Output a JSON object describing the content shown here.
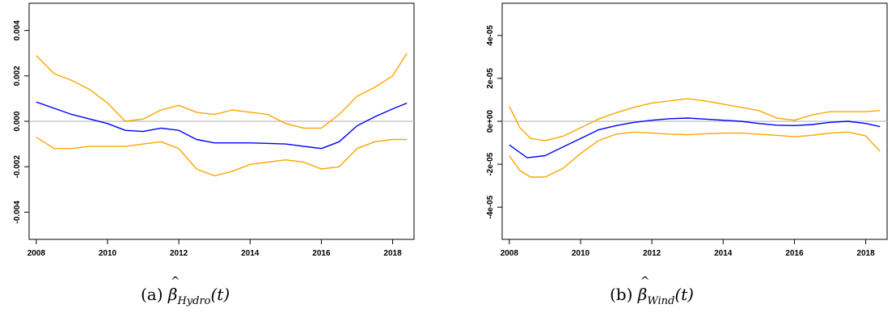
{
  "chart_data": [
    {
      "type": "line",
      "panel": "a",
      "title": "",
      "xlabel": "",
      "ylabel": "",
      "xlim": [
        2007.8,
        2018.6
      ],
      "ylim": [
        -0.0052,
        0.0052
      ],
      "xticks": [
        2008,
        2010,
        2012,
        2014,
        2016,
        2018
      ],
      "xtick_labels": [
        "2008",
        "2010",
        "2012",
        "2014",
        "2016",
        "2018"
      ],
      "yticks": [
        -0.004,
        -0.002,
        0.0,
        0.002,
        0.004
      ],
      "ytick_labels": [
        "-0.004",
        "-0.002",
        "0.000",
        "0.002",
        "0.004"
      ],
      "reference_line": 0,
      "colors": {
        "estimate": "#0000ff",
        "band": "#ffa500",
        "reference": "#bebebe"
      },
      "series": [
        {
          "role": "estimate",
          "x": [
            2008,
            2009,
            2010,
            2010.5,
            2011,
            2011.5,
            2012,
            2012.5,
            2013,
            2014,
            2015,
            2015.5,
            2016,
            2016.5,
            2017,
            2017.5,
            2018,
            2018.4
          ],
          "y": [
            0.00085,
            0.0003,
            -0.0001,
            -0.0004,
            -0.00045,
            -0.0003,
            -0.0004,
            -0.0008,
            -0.00095,
            -0.00095,
            -0.001,
            -0.0011,
            -0.0012,
            -0.0009,
            -0.0002,
            0.0002,
            0.00055,
            0.0008
          ]
        },
        {
          "role": "upper",
          "x": [
            2008,
            2008.5,
            2009,
            2009.5,
            2010,
            2010.5,
            2011,
            2011.5,
            2012,
            2012.5,
            2013,
            2013.5,
            2014,
            2014.5,
            2015,
            2015.5,
            2016,
            2016.5,
            2017,
            2017.5,
            2018,
            2018.4
          ],
          "y": [
            0.0029,
            0.0021,
            0.0018,
            0.0014,
            0.0008,
            0.0,
            0.0001,
            0.0005,
            0.0007,
            0.0004,
            0.0003,
            0.0005,
            0.0004,
            0.0003,
            -0.0001,
            -0.0003,
            -0.0003,
            0.0003,
            0.0011,
            0.0015,
            0.002,
            0.003
          ]
        },
        {
          "role": "lower",
          "x": [
            2008,
            2008.5,
            2009,
            2009.5,
            2010,
            2010.5,
            2011,
            2011.5,
            2012,
            2012.5,
            2013,
            2013.5,
            2014,
            2014.5,
            2015,
            2015.5,
            2016,
            2016.5,
            2017,
            2017.5,
            2018,
            2018.4
          ],
          "y": [
            -0.0007,
            -0.0012,
            -0.0012,
            -0.0011,
            -0.0011,
            -0.0011,
            -0.001,
            -0.0009,
            -0.0012,
            -0.0021,
            -0.0024,
            -0.0022,
            -0.0019,
            -0.0018,
            -0.0017,
            -0.0018,
            -0.0021,
            -0.002,
            -0.0012,
            -0.0009,
            -0.0008,
            -0.0008
          ]
        }
      ]
    },
    {
      "type": "line",
      "panel": "b",
      "title": "",
      "xlabel": "",
      "ylabel": "",
      "xlim": [
        2007.8,
        2018.6
      ],
      "ylim": [
        -5.5e-05,
        5.5e-05
      ],
      "xticks": [
        2008,
        2010,
        2012,
        2014,
        2016,
        2018
      ],
      "xtick_labels": [
        "2008",
        "2010",
        "2012",
        "2014",
        "2016",
        "2018"
      ],
      "yticks": [
        -4e-05,
        -2e-05,
        0.0,
        2e-05,
        4e-05
      ],
      "ytick_labels": [
        "-4e-05",
        "-2e-05",
        "0e+00",
        "2e-05",
        "4e-05"
      ],
      "reference_line": 0,
      "colors": {
        "estimate": "#0000ff",
        "band": "#ffa500",
        "reference": "#bebebe"
      },
      "series": [
        {
          "role": "estimate",
          "x": [
            2008,
            2008.5,
            2009,
            2009.5,
            2010,
            2010.5,
            2011,
            2011.5,
            2012,
            2012.5,
            2013,
            2013.5,
            2014,
            2014.5,
            2015,
            2015.5,
            2016,
            2016.5,
            2017,
            2017.5,
            2018,
            2018.4
          ],
          "y": [
            -1.1e-05,
            -1.7e-05,
            -1.6e-05,
            -1.2e-05,
            -8e-06,
            -4e-06,
            -2e-06,
            -5e-07,
            5e-07,
            1.2e-06,
            1.5e-06,
            1e-06,
            5e-07,
            0.0,
            -1e-06,
            -1.8e-06,
            -2e-06,
            -1.5e-06,
            -5e-07,
            0.0,
            -1e-06,
            -2.5e-06
          ]
        },
        {
          "role": "upper",
          "x": [
            2008,
            2008.3,
            2008.6,
            2009,
            2009.5,
            2010,
            2010.5,
            2011,
            2011.5,
            2012,
            2012.5,
            2013,
            2013.5,
            2014,
            2014.5,
            2015,
            2015.5,
            2016,
            2016.5,
            2017,
            2017.5,
            2018,
            2018.4
          ],
          "y": [
            7e-06,
            -3e-06,
            -8e-06,
            -9e-06,
            -7e-06,
            -3e-06,
            1e-06,
            4e-06,
            6.5e-06,
            8.5e-06,
            9.5e-06,
            1.05e-05,
            9.5e-06,
            8e-06,
            6.5e-06,
            5e-06,
            1.5e-06,
            5e-07,
            3e-06,
            4.5e-06,
            4.5e-06,
            4.5e-06,
            5e-06
          ]
        },
        {
          "role": "lower",
          "x": [
            2008,
            2008.3,
            2008.6,
            2009,
            2009.5,
            2010,
            2010.5,
            2011,
            2011.5,
            2012,
            2012.5,
            2013,
            2013.5,
            2014,
            2014.5,
            2015,
            2015.5,
            2016,
            2016.5,
            2017,
            2017.5,
            2018,
            2018.4
          ],
          "y": [
            -1.6e-05,
            -2.3e-05,
            -2.6e-05,
            -2.6e-05,
            -2.2e-05,
            -1.5e-05,
            -9e-06,
            -6e-06,
            -5e-06,
            -5.5e-06,
            -6e-06,
            -6.2e-06,
            -5.8e-06,
            -5.5e-06,
            -5.5e-06,
            -6e-06,
            -6.5e-06,
            -7.2e-06,
            -6.5e-06,
            -5.5e-06,
            -5e-06,
            -6.8e-06,
            -1.4e-05
          ]
        }
      ]
    }
  ],
  "captions": {
    "a": {
      "label": "(a)",
      "symbol": "β",
      "subscript": "Hydro",
      "arg": "(t)"
    },
    "b": {
      "label": "(b)",
      "symbol": "β",
      "subscript": "Wind",
      "arg": "(t)"
    }
  }
}
